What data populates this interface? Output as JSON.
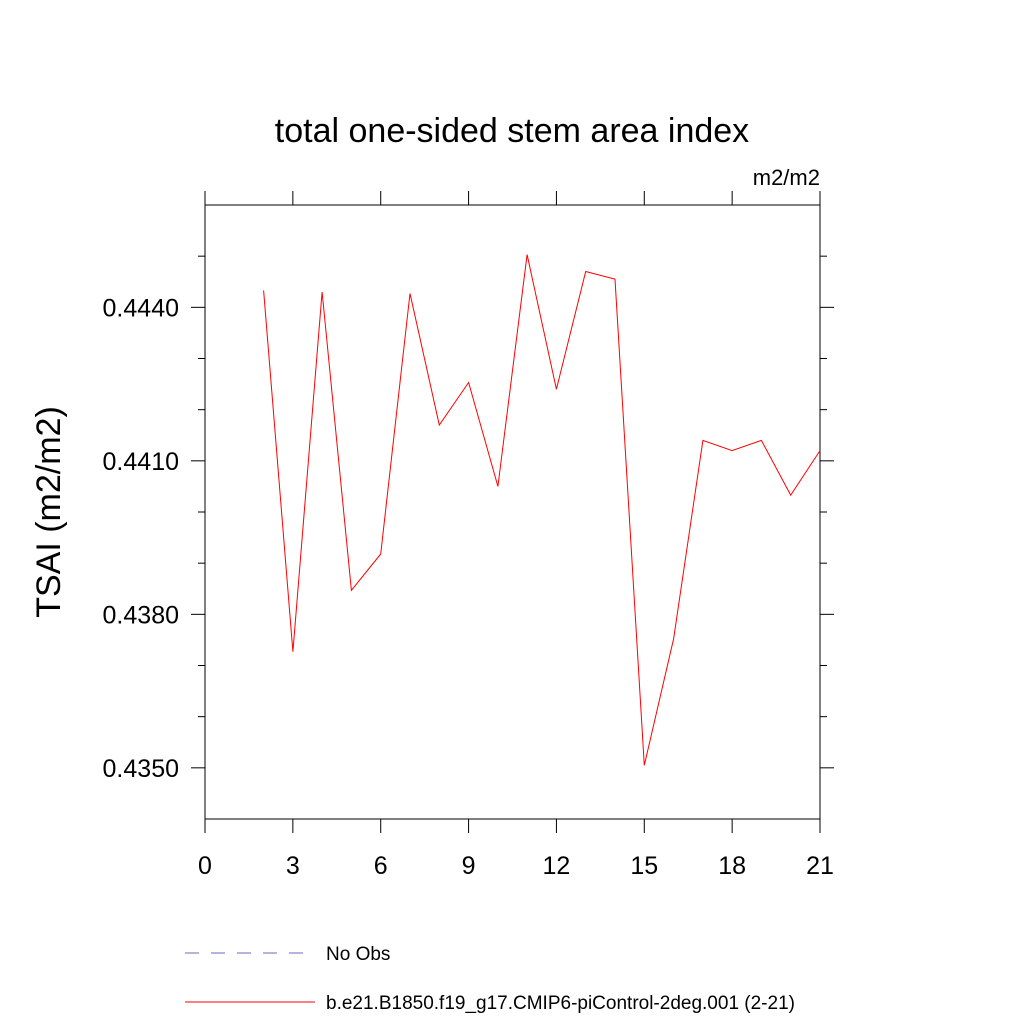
{
  "chart_data": {
    "type": "line",
    "title": "total one-sided stem area index",
    "units_label": "m2/m2",
    "ylabel": "TSAI  (m2/m2)",
    "xlabel": "",
    "xlim": [
      0,
      21
    ],
    "ylim": [
      0.434,
      0.446
    ],
    "x_ticks": [
      "0",
      "3",
      "6",
      "9",
      "12",
      "15",
      "18",
      "21"
    ],
    "y_ticks": [
      "0.4350",
      "0.4380",
      "0.4410",
      "0.4440"
    ],
    "y_tick_values": [
      0.435,
      0.438,
      0.441,
      0.444
    ],
    "x_tick_values": [
      0,
      3,
      6,
      9,
      12,
      15,
      18,
      21
    ],
    "grid": false,
    "legend_position": "bottom",
    "series": [
      {
        "name": "No Obs",
        "color": "#6a6ac8",
        "dash": "dashed",
        "x": [],
        "y": []
      },
      {
        "name": "b.e21.B1850.f19_g17.CMIP6-piControl-2deg.001 (2-21)",
        "color": "#ff0000",
        "dash": "solid",
        "x": [
          2,
          3,
          4,
          5,
          6,
          7,
          8,
          9,
          10,
          11,
          12,
          13,
          14,
          15,
          16,
          17,
          18,
          19,
          20,
          21
        ],
        "y": [
          0.44433,
          0.43727,
          0.4443,
          0.43847,
          0.43918,
          0.44427,
          0.4417,
          0.44253,
          0.4405,
          0.44503,
          0.4424,
          0.4447,
          0.44455,
          0.43505,
          0.43752,
          0.4414,
          0.4412,
          0.4414,
          0.44033,
          0.4412
        ]
      }
    ]
  }
}
